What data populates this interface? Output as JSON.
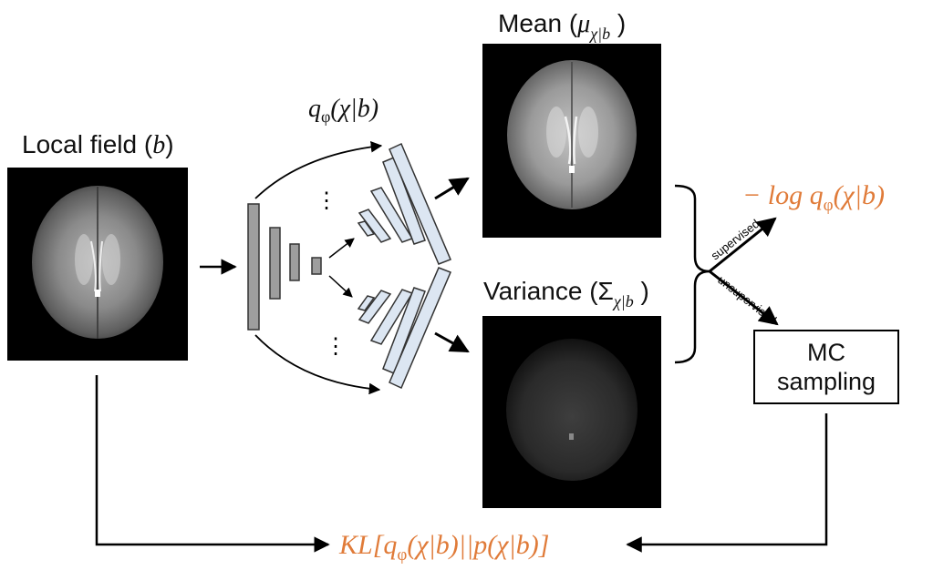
{
  "input": {
    "label": "Local field (",
    "var": "b",
    "close": ")"
  },
  "encoder": {
    "label_q": "q",
    "label_phi": "φ",
    "label_args": "(χ|b)"
  },
  "mean": {
    "label": "Mean (",
    "mu": "μ",
    "sub": "χ|b",
    "close": " )"
  },
  "variance": {
    "label": "Variance (",
    "sigma": "Σ",
    "sub": "χ|b",
    "close": " )"
  },
  "loss_supervised": {
    "text_pre": "− log q",
    "phi": "φ",
    "text_post": "(χ|b)"
  },
  "branches": {
    "supervised": "supervised",
    "unsupervised": "unsupervised"
  },
  "mc": {
    "line1": "MC",
    "line2": "sampling"
  },
  "kl": {
    "pre": "KL[q",
    "phi": "φ",
    "post": "(χ|b)||p(χ|b)]"
  },
  "dots": "⋮",
  "colors": {
    "accent": "#E07B39",
    "encoder_bar": "#9E9E9E",
    "decoder_bar": "#DCE6F2"
  }
}
